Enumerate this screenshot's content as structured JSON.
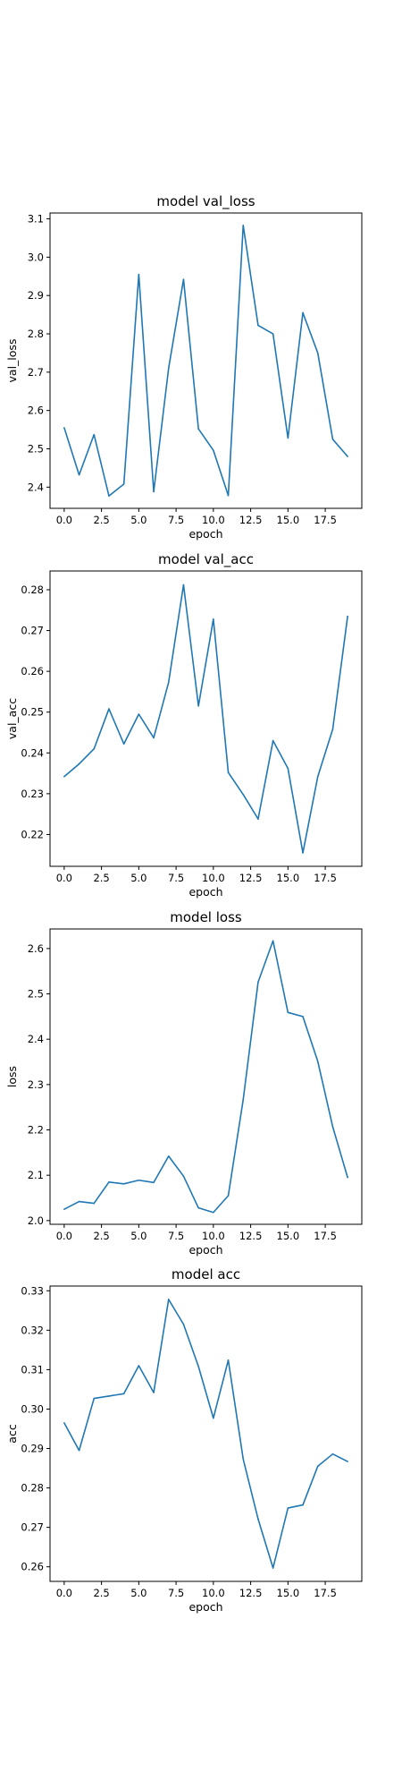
{
  "chart_data": [
    {
      "type": "line",
      "title": "model val_loss",
      "xlabel": "epoch",
      "ylabel": "val_loss",
      "x": [
        0,
        1,
        2,
        3,
        4,
        5,
        6,
        7,
        8,
        9,
        10,
        11,
        12,
        13,
        14,
        15,
        16,
        17,
        18,
        19
      ],
      "series": [
        {
          "values": [
            2.555,
            2.432,
            2.537,
            2.377,
            2.408,
            2.955,
            2.388,
            2.71,
            2.942,
            2.552,
            2.496,
            2.378,
            3.083,
            2.822,
            2.8,
            2.528,
            2.855,
            2.75,
            2.525,
            2.48
          ],
          "color": "#1f77b4"
        }
      ],
      "xlim": [
        -0.95,
        19.95
      ],
      "ylim": [
        2.3447,
        3.1153
      ],
      "xticks": [
        0,
        2.5,
        5,
        7.5,
        10,
        12.5,
        15,
        17.5
      ],
      "xtick_labels": [
        "0.0",
        "2.5",
        "5.0",
        "7.5",
        "10.0",
        "12.5",
        "15.0",
        "17.5"
      ],
      "yticks": [
        2.4,
        2.5,
        2.6,
        2.7,
        2.8,
        2.9,
        3.0,
        3.1
      ],
      "ytick_labels": [
        "2.4",
        "2.5",
        "2.6",
        "2.7",
        "2.8",
        "2.9",
        "3.0",
        "3.1"
      ],
      "grid": false,
      "legend": "none"
    },
    {
      "type": "line",
      "title": "model val_acc",
      "xlabel": "epoch",
      "ylabel": "val_acc",
      "x": [
        0,
        1,
        2,
        3,
        4,
        5,
        6,
        7,
        8,
        9,
        10,
        11,
        12,
        13,
        14,
        15,
        16,
        17,
        18,
        19
      ],
      "series": [
        {
          "values": [
            0.2342,
            0.2373,
            0.241,
            0.2508,
            0.2422,
            0.2495,
            0.2437,
            0.2573,
            0.2812,
            0.2515,
            0.2728,
            0.2352,
            0.2298,
            0.2238,
            0.243,
            0.2362,
            0.2155,
            0.2342,
            0.2458,
            0.2735
          ],
          "color": "#1f77b4"
        }
      ],
      "xlim": [
        -0.95,
        19.95
      ],
      "ylim": [
        0.2122,
        0.2846
      ],
      "xticks": [
        0,
        2.5,
        5,
        7.5,
        10,
        12.5,
        15,
        17.5
      ],
      "xtick_labels": [
        "0.0",
        "2.5",
        "5.0",
        "7.5",
        "10.0",
        "12.5",
        "15.0",
        "17.5"
      ],
      "yticks": [
        0.22,
        0.23,
        0.24,
        0.25,
        0.26,
        0.27,
        0.28
      ],
      "ytick_labels": [
        "0.22",
        "0.23",
        "0.24",
        "0.25",
        "0.26",
        "0.27",
        "0.28"
      ],
      "grid": false,
      "legend": "none"
    },
    {
      "type": "line",
      "title": "model loss",
      "xlabel": "epoch",
      "ylabel": "loss",
      "x": [
        0,
        1,
        2,
        3,
        4,
        5,
        6,
        7,
        8,
        9,
        10,
        11,
        12,
        13,
        14,
        15,
        16,
        17,
        18,
        19
      ],
      "series": [
        {
          "values": [
            2.025,
            2.042,
            2.038,
            2.085,
            2.081,
            2.089,
            2.084,
            2.142,
            2.098,
            2.028,
            2.018,
            2.055,
            2.267,
            2.526,
            2.617,
            2.459,
            2.45,
            2.351,
            2.207,
            2.095
          ],
          "color": "#1f77b4"
        }
      ],
      "xlim": [
        -0.95,
        19.95
      ],
      "ylim": [
        1.9918,
        2.6432
      ],
      "xticks": [
        0,
        2.5,
        5,
        7.5,
        10,
        12.5,
        15,
        17.5
      ],
      "xtick_labels": [
        "0.0",
        "2.5",
        "5.0",
        "7.5",
        "10.0",
        "12.5",
        "15.0",
        "17.5"
      ],
      "yticks": [
        2.0,
        2.1,
        2.2,
        2.3,
        2.4,
        2.5,
        2.6
      ],
      "ytick_labels": [
        "2.0",
        "2.1",
        "2.2",
        "2.3",
        "2.4",
        "2.5",
        "2.6"
      ],
      "grid": false,
      "legend": "none"
    },
    {
      "type": "line",
      "title": "model acc",
      "xlabel": "epoch",
      "ylabel": "acc",
      "x": [
        0,
        1,
        2,
        3,
        4,
        5,
        6,
        7,
        8,
        9,
        10,
        11,
        12,
        13,
        14,
        15,
        16,
        17,
        18,
        19
      ],
      "series": [
        {
          "values": [
            0.2965,
            0.2895,
            0.3027,
            0.3033,
            0.3039,
            0.311,
            0.3042,
            0.3278,
            0.3215,
            0.3108,
            0.2977,
            0.3124,
            0.2873,
            0.2721,
            0.2597,
            0.2749,
            0.2757,
            0.2855,
            0.2886,
            0.2867
          ],
          "color": "#1f77b4"
        }
      ],
      "xlim": [
        -0.95,
        19.95
      ],
      "ylim": [
        0.2563,
        0.3312
      ],
      "xticks": [
        0,
        2.5,
        5,
        7.5,
        10,
        12.5,
        15,
        17.5
      ],
      "xtick_labels": [
        "0.0",
        "2.5",
        "5.0",
        "7.5",
        "10.0",
        "12.5",
        "15.0",
        "17.5"
      ],
      "yticks": [
        0.26,
        0.27,
        0.28,
        0.29,
        0.3,
        0.31,
        0.32,
        0.33
      ],
      "ytick_labels": [
        "0.26",
        "0.27",
        "0.28",
        "0.29",
        "0.30",
        "0.31",
        "0.32",
        "0.33"
      ],
      "grid": false,
      "legend": "none"
    }
  ]
}
